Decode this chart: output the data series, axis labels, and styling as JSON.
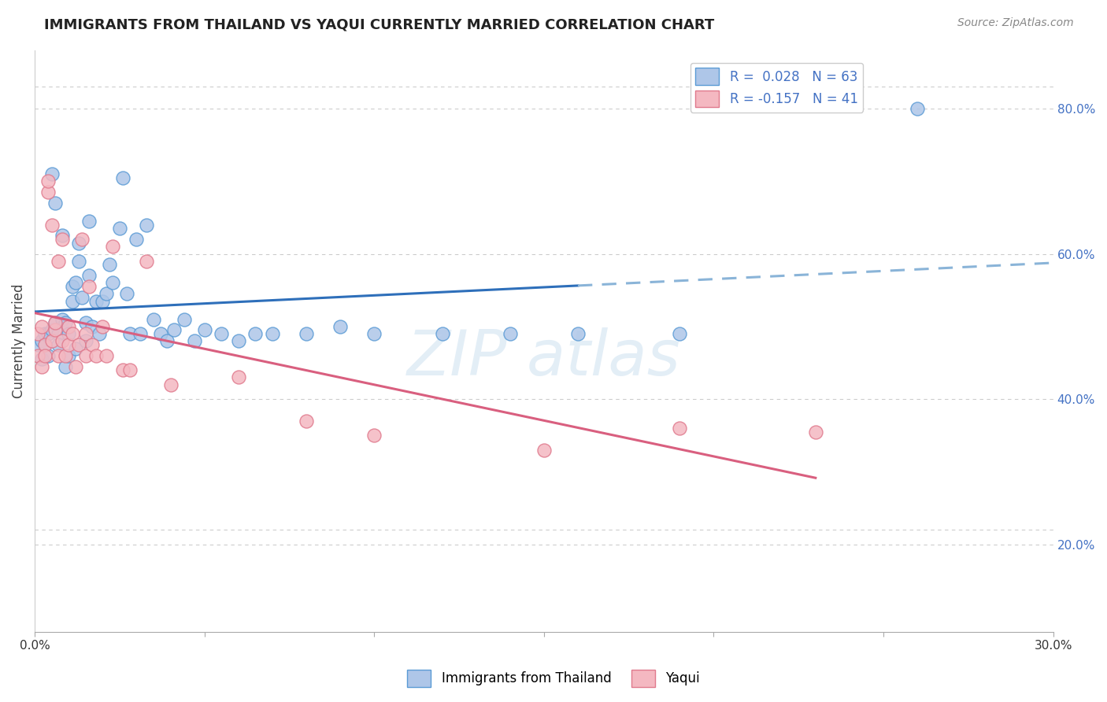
{
  "title": "IMMIGRANTS FROM THAILAND VS YAQUI CURRENTLY MARRIED CORRELATION CHART",
  "source": "Source: ZipAtlas.com",
  "ylabel": "Currently Married",
  "legend_label1": "Immigrants from Thailand",
  "legend_label2": "Yaqui",
  "r1": 0.028,
  "n1": 63,
  "r2": -0.157,
  "n2": 41,
  "xlim": [
    0.0,
    0.3
  ],
  "ylim": [
    0.08,
    0.88
  ],
  "xtick_labels_show": [
    "0.0%",
    "30.0%"
  ],
  "yticks": [
    0.2,
    0.4,
    0.6,
    0.8
  ],
  "color1": "#aec6e8",
  "color2": "#f4b8c1",
  "edge1": "#5b9bd5",
  "edge2": "#e07a8d",
  "trendline1_solid_color": "#2e6fba",
  "trendline1_dash_color": "#8ab4d8",
  "trendline2_color": "#d95f7f",
  "bg_color": "#ffffff",
  "grid_color": "#cccccc",
  "scatter1_x": [
    0.001,
    0.002,
    0.002,
    0.003,
    0.003,
    0.004,
    0.004,
    0.005,
    0.005,
    0.006,
    0.006,
    0.007,
    0.007,
    0.008,
    0.008,
    0.009,
    0.009,
    0.01,
    0.01,
    0.011,
    0.011,
    0.012,
    0.012,
    0.013,
    0.013,
    0.014,
    0.015,
    0.015,
    0.016,
    0.016,
    0.017,
    0.018,
    0.019,
    0.02,
    0.021,
    0.022,
    0.023,
    0.025,
    0.026,
    0.027,
    0.028,
    0.03,
    0.031,
    0.033,
    0.035,
    0.037,
    0.039,
    0.041,
    0.044,
    0.047,
    0.05,
    0.055,
    0.06,
    0.065,
    0.07,
    0.08,
    0.09,
    0.1,
    0.12,
    0.14,
    0.16,
    0.19,
    0.26
  ],
  "scatter1_y": [
    0.475,
    0.455,
    0.48,
    0.475,
    0.49,
    0.46,
    0.49,
    0.71,
    0.495,
    0.67,
    0.505,
    0.49,
    0.475,
    0.625,
    0.51,
    0.445,
    0.505,
    0.49,
    0.46,
    0.535,
    0.555,
    0.47,
    0.56,
    0.59,
    0.615,
    0.54,
    0.505,
    0.48,
    0.645,
    0.57,
    0.5,
    0.535,
    0.49,
    0.535,
    0.545,
    0.585,
    0.56,
    0.635,
    0.705,
    0.545,
    0.49,
    0.62,
    0.49,
    0.64,
    0.51,
    0.49,
    0.48,
    0.495,
    0.51,
    0.48,
    0.495,
    0.49,
    0.48,
    0.49,
    0.49,
    0.49,
    0.5,
    0.49,
    0.49,
    0.49,
    0.49,
    0.49,
    0.8
  ],
  "scatter2_x": [
    0.001,
    0.001,
    0.002,
    0.002,
    0.003,
    0.003,
    0.004,
    0.004,
    0.005,
    0.005,
    0.006,
    0.006,
    0.007,
    0.007,
    0.008,
    0.008,
    0.009,
    0.01,
    0.01,
    0.011,
    0.012,
    0.013,
    0.014,
    0.015,
    0.015,
    0.016,
    0.017,
    0.018,
    0.02,
    0.021,
    0.023,
    0.026,
    0.028,
    0.033,
    0.04,
    0.06,
    0.08,
    0.1,
    0.15,
    0.19,
    0.23
  ],
  "scatter2_y": [
    0.49,
    0.46,
    0.5,
    0.445,
    0.475,
    0.46,
    0.685,
    0.7,
    0.48,
    0.64,
    0.495,
    0.505,
    0.59,
    0.46,
    0.62,
    0.48,
    0.46,
    0.5,
    0.475,
    0.49,
    0.445,
    0.475,
    0.62,
    0.49,
    0.46,
    0.555,
    0.475,
    0.46,
    0.5,
    0.46,
    0.61,
    0.44,
    0.44,
    0.59,
    0.42,
    0.43,
    0.37,
    0.35,
    0.33,
    0.36,
    0.355
  ],
  "trendline1_x_solid_end": 0.16,
  "trendline1_x_start": 0.0,
  "trendline1_x_end": 0.3,
  "trendline2_x_start": 0.0,
  "trendline2_x_end": 0.23
}
